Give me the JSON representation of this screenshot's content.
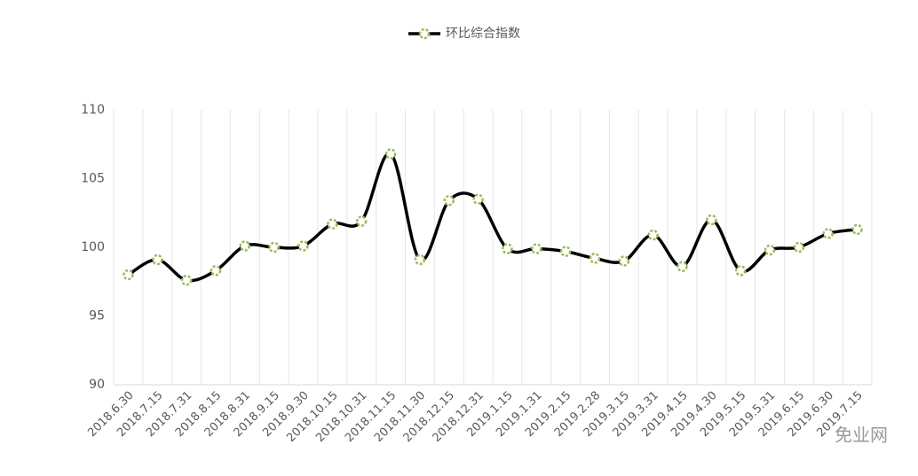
{
  "chart_data": {
    "type": "line",
    "smooth": true,
    "categories": [
      "2018.6.30",
      "2018.7.15",
      "2018.7.31",
      "2018.8.15",
      "2018.8.31",
      "2018.9.15",
      "2018.9.30",
      "2018.10.15",
      "2018.10.31",
      "2018.11.15",
      "2018.11.30",
      "2018.12.15",
      "2018.12.31",
      "2019.1.15",
      "2019.1.31",
      "2019.2.15",
      "2019.2.28",
      "2019.3.15",
      "2019.3.31",
      "2019.4.15",
      "2019.4.30",
      "2019.5.15",
      "2019.5.31",
      "2019.6.15",
      "2019.6.30",
      "2019.7.15"
    ],
    "series": [
      {
        "name": "环比综合指数",
        "color": "#000000",
        "marker_color": "#9bbb59",
        "values": [
          98.0,
          99.1,
          97.6,
          98.3,
          100.1,
          100.0,
          100.1,
          101.7,
          101.9,
          106.8,
          99.1,
          103.4,
          103.5,
          99.9,
          99.9,
          99.7,
          99.2,
          99.0,
          100.9,
          98.6,
          102.0,
          98.3,
          99.8,
          100.0,
          101.0,
          101.3
        ]
      }
    ],
    "ylim": [
      90,
      110
    ],
    "yticks": [
      90,
      95,
      100,
      105,
      110
    ],
    "grid": "x",
    "legend": "top",
    "watermark": "免业网"
  }
}
